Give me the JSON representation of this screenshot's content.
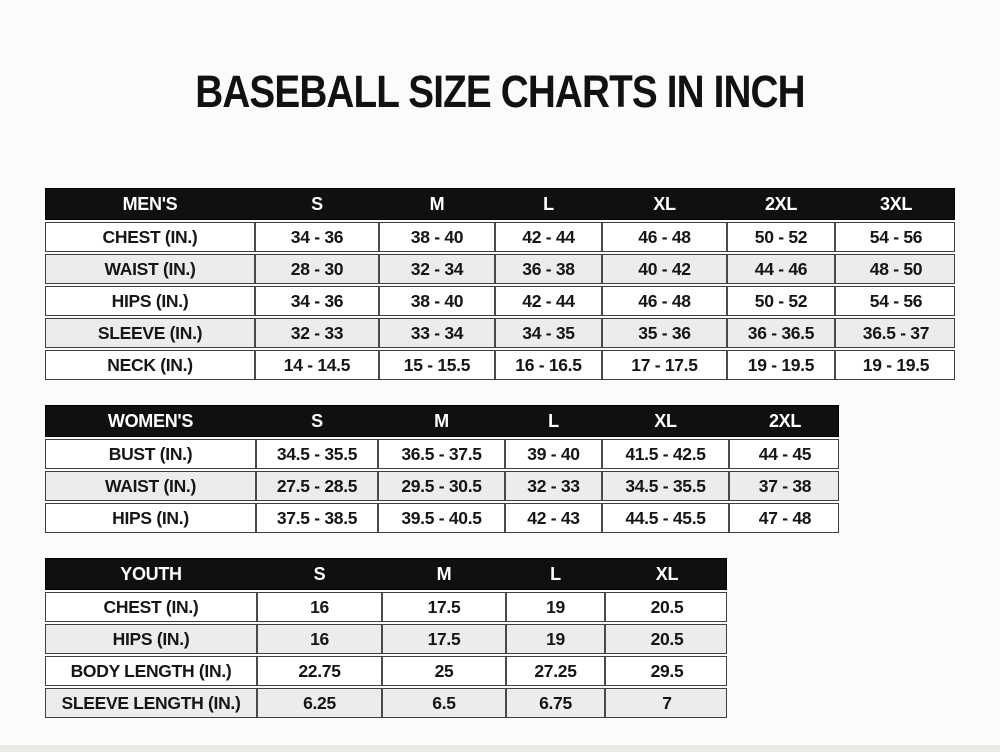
{
  "title": "BASEBALL SIZE CHARTS IN INCH",
  "colors": {
    "header_bg": "#101010",
    "header_text": "#ffffff",
    "row_bg": "#ffffff",
    "row_alt_bg": "#ececec",
    "border": "#3f3f3f",
    "text": "#161616"
  },
  "tables": [
    {
      "name": "MEN'S",
      "sizes": [
        "S",
        "M",
        "L",
        "XL",
        "2XL",
        "3XL"
      ],
      "rows": [
        {
          "label": "CHEST (IN.)",
          "values": [
            "34 - 36",
            "38 - 40",
            "42 - 44",
            "46 - 48",
            "50 - 52",
            "54 - 56"
          ]
        },
        {
          "label": "WAIST (IN.)",
          "values": [
            "28 - 30",
            "32 - 34",
            "36 - 38",
            "40 - 42",
            "44 - 46",
            "48 - 50"
          ]
        },
        {
          "label": "HIPS (IN.)",
          "values": [
            "34 - 36",
            "38 - 40",
            "42 - 44",
            "46 - 48",
            "50 - 52",
            "54 - 56"
          ]
        },
        {
          "label": "SLEEVE (IN.)",
          "values": [
            "32 - 33",
            "33 - 34",
            "34 - 35",
            "35 - 36",
            "36 - 36.5",
            "36.5 - 37"
          ]
        },
        {
          "label": "NECK (IN.)",
          "values": [
            "14 - 14.5",
            "15 - 15.5",
            "16 - 16.5",
            "17 - 17.5",
            "19 - 19.5",
            "19 - 19.5"
          ]
        }
      ]
    },
    {
      "name": "WOMEN'S",
      "sizes": [
        "S",
        "M",
        "L",
        "XL",
        "2XL"
      ],
      "rows": [
        {
          "label": "BUST (IN.)",
          "values": [
            "34.5 - 35.5",
            "36.5 - 37.5",
            "39 - 40",
            "41.5 - 42.5",
            "44 - 45"
          ]
        },
        {
          "label": "WAIST (IN.)",
          "values": [
            "27.5 - 28.5",
            "29.5 - 30.5",
            "32 - 33",
            "34.5 - 35.5",
            "37 - 38"
          ]
        },
        {
          "label": "HIPS (IN.)",
          "values": [
            "37.5 - 38.5",
            "39.5 - 40.5",
            "42 - 43",
            "44.5 - 45.5",
            "47 - 48"
          ]
        }
      ]
    },
    {
      "name": "YOUTH",
      "sizes": [
        "S",
        "M",
        "L",
        "XL"
      ],
      "rows": [
        {
          "label": "CHEST (IN.)",
          "values": [
            "16",
            "17.5",
            "19",
            "20.5"
          ]
        },
        {
          "label": "HIPS (IN.)",
          "values": [
            "16",
            "17.5",
            "19",
            "20.5"
          ]
        },
        {
          "label": "BODY LENGTH (IN.)",
          "values": [
            "22.75",
            "25",
            "27.25",
            "29.5"
          ]
        },
        {
          "label": "SLEEVE LENGTH (IN.)",
          "values": [
            "6.25",
            "6.5",
            "6.75",
            "7"
          ]
        }
      ]
    }
  ]
}
